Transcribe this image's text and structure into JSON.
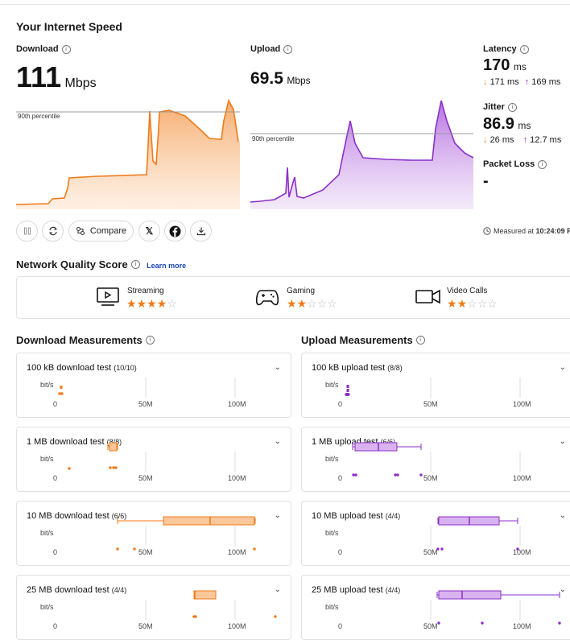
{
  "header": {
    "title": "Your Internet Speed"
  },
  "download": {
    "label": "Download",
    "value": "111",
    "unit": "Mbps",
    "percentile_label": "90th percentile"
  },
  "upload": {
    "label": "Upload",
    "value": "69.5",
    "unit": "Mbps",
    "percentile_label": "90th percentile"
  },
  "latency": {
    "label": "Latency",
    "value": "170",
    "unit": "ms",
    "down": "171",
    "down_unit": "ms",
    "up": "169",
    "up_unit": "ms"
  },
  "jitter": {
    "label": "Jitter",
    "value": "86.9",
    "unit": "ms",
    "down": "26",
    "down_unit": "ms",
    "up": "12.7",
    "up_unit": "ms"
  },
  "packet_loss": {
    "label": "Packet Loss",
    "value": "-"
  },
  "toolbar": {
    "compare_label": "Compare",
    "measured_at_label": "Measured at",
    "measured_at": "10:24:09 F"
  },
  "quality": {
    "title": "Network Quality Score",
    "learn_more": "Learn more",
    "items": [
      {
        "label": "Streaming",
        "rating": 4,
        "max": 5,
        "icon": "tv-icon"
      },
      {
        "label": "Gaming",
        "rating": 2,
        "max": 5,
        "icon": "gamepad-icon"
      },
      {
        "label": "Video Calls",
        "rating": 2,
        "max": 5,
        "icon": "video-camera-icon"
      }
    ]
  },
  "colors": {
    "download": "#f07b1a",
    "download_fill": "#f9c79a",
    "upload": "#8b2fc9",
    "upload_fill": "#d9b3ef"
  },
  "measurements": {
    "download_title": "Download Measurements",
    "upload_title": "Upload Measurements",
    "axis_unit": "bit/s",
    "ticks": [
      "0",
      "50M",
      "100M"
    ],
    "download": [
      {
        "title": "100 kB download test",
        "count": "(10/10)"
      },
      {
        "title": "1 MB download test",
        "count": "(8/8)"
      },
      {
        "title": "10 MB download test",
        "count": "(6/6)"
      },
      {
        "title": "25 MB download test",
        "count": "(4/4)"
      }
    ],
    "upload": [
      {
        "title": "100 kB upload test",
        "count": "(8/8)"
      },
      {
        "title": "1 MB upload test",
        "count": "(6/6)"
      },
      {
        "title": "10 MB upload test",
        "count": "(4/4)"
      },
      {
        "title": "25 MB upload test",
        "count": "(4/4)"
      }
    ]
  }
}
